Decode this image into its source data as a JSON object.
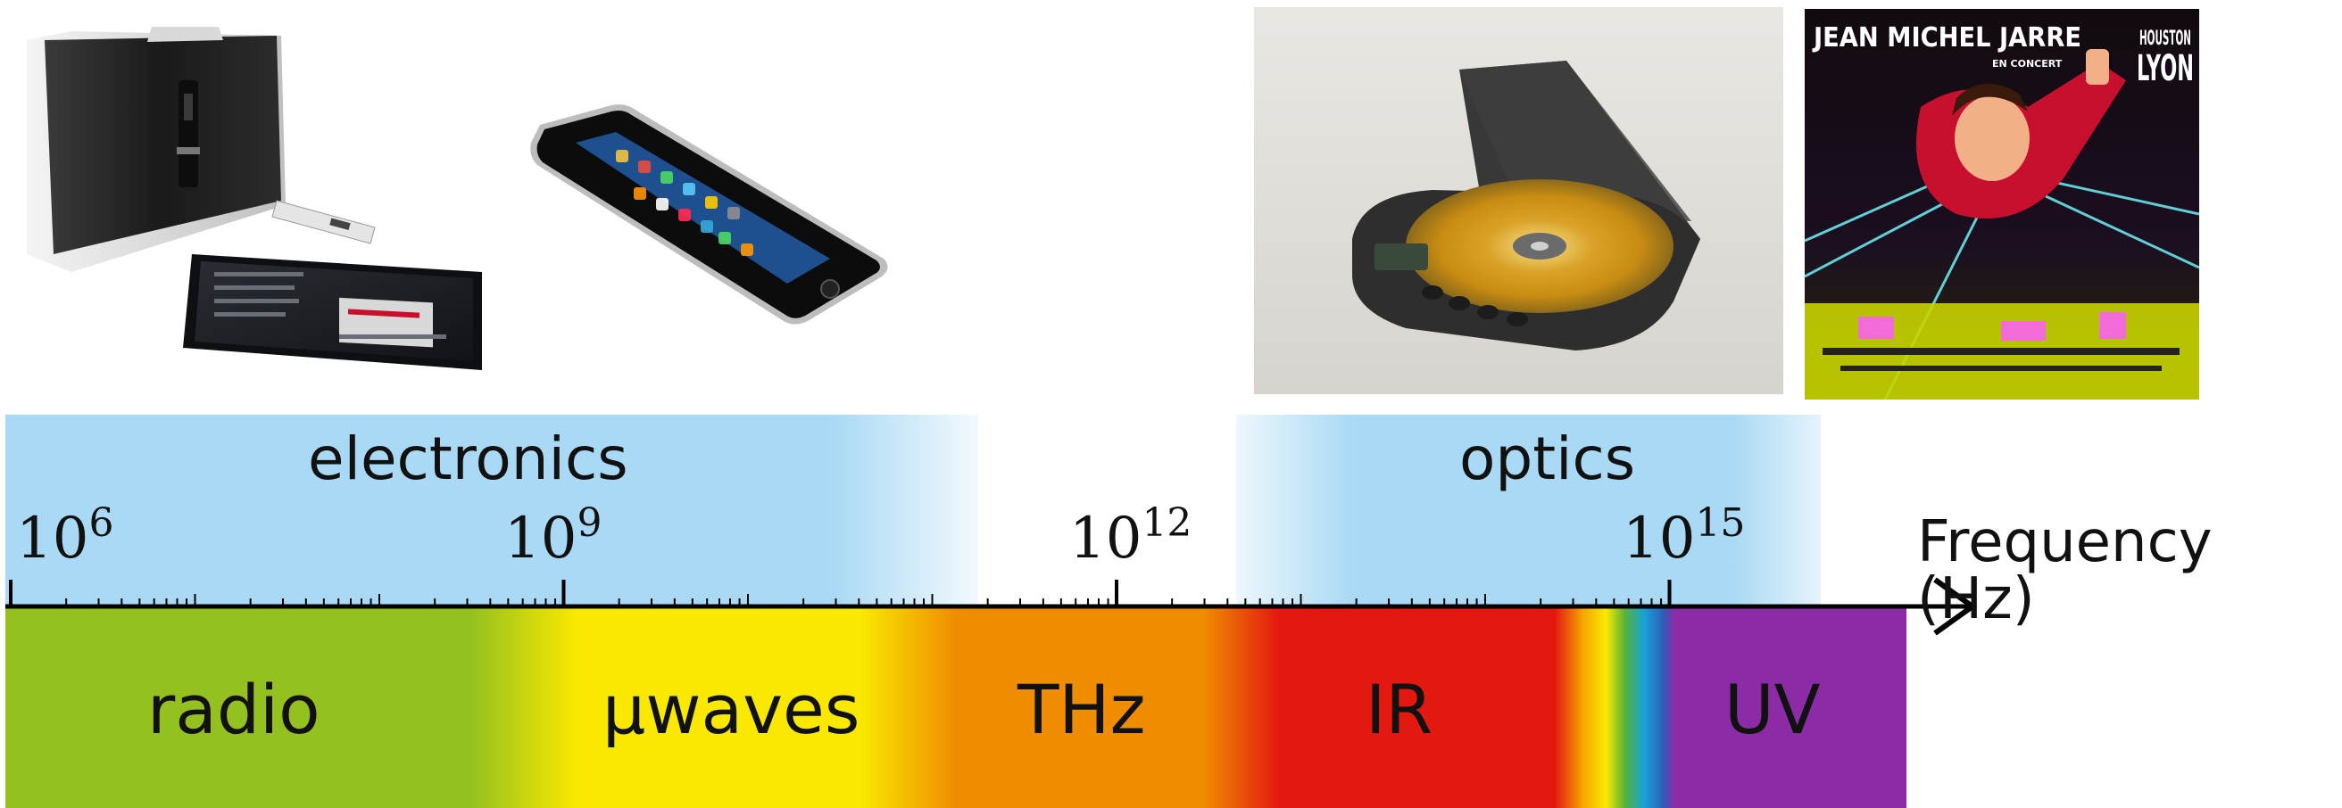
{
  "bands": [
    {
      "label": "electronics"
    },
    {
      "label": "optics"
    }
  ],
  "axis": {
    "label": "Frequency (Hz)",
    "ticks": [
      {
        "base": "10",
        "exp": "6"
      },
      {
        "base": "10",
        "exp": "9"
      },
      {
        "base": "10",
        "exp": "12"
      },
      {
        "base": "10",
        "exp": "15"
      }
    ]
  },
  "regions": [
    {
      "label": "radio",
      "color": "#94c11f"
    },
    {
      "label": "µwaves",
      "color": "#f9e800"
    },
    {
      "label": "THz",
      "color": "#ef8d00"
    },
    {
      "label": "IR",
      "color": "#e3190f"
    },
    {
      "label": "UV",
      "color": "#8c2ba6"
    }
  ],
  "colors": {
    "band_blue": "#a9d9f4",
    "axis": "#000000"
  },
  "album": {
    "title": "JEAN MICHEL JARRE",
    "subtitle": "EN CONCERT",
    "city1": "HOUSTON",
    "city2": "LYON"
  },
  "icons": [
    "wireless-speaker",
    "tablet",
    "remote-control",
    "smartphone",
    "portable-cd-player",
    "album-cover"
  ]
}
